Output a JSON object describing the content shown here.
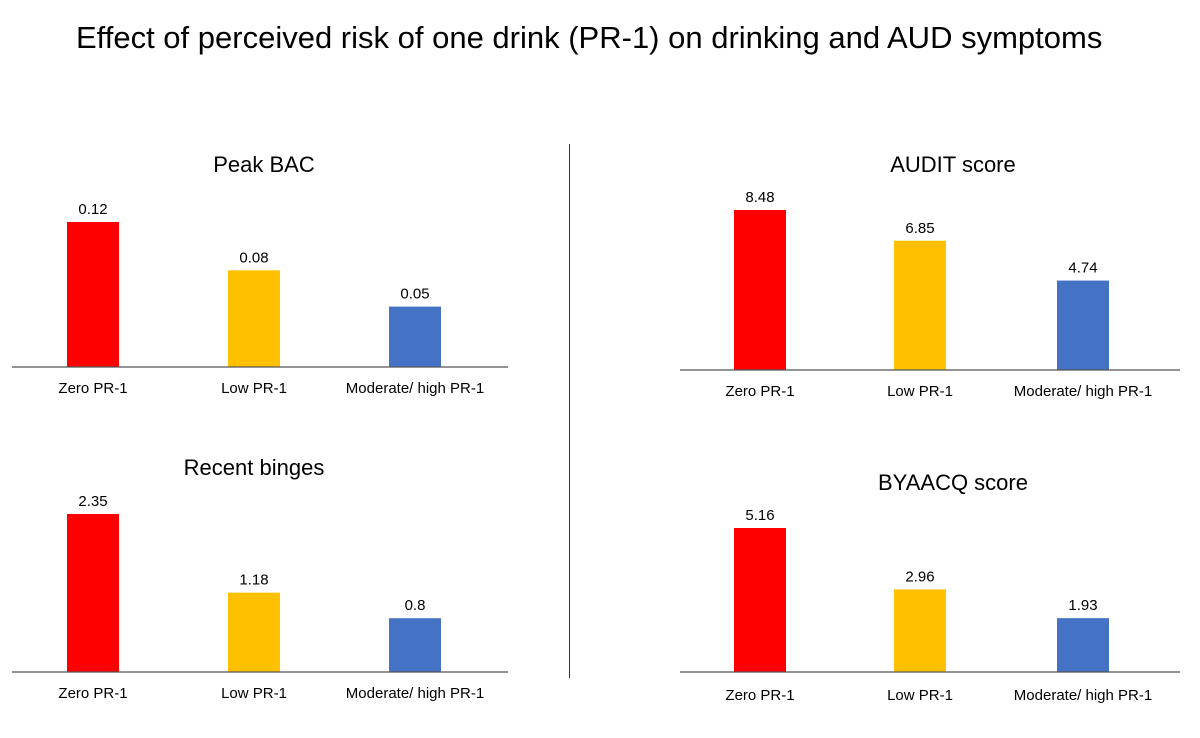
{
  "title": "Effect of perceived risk of one drink (PR-1) on drinking and AUD symptoms",
  "colors": {
    "zero": "#ff0000",
    "low": "#ffc000",
    "moderate": "#4472c4",
    "axis": "#555555"
  },
  "chart_data": [
    {
      "type": "bar",
      "title": "Peak BAC",
      "categories": [
        "Zero PR-1",
        "Low PR-1",
        "Moderate/ high PR-1"
      ],
      "values": [
        0.12,
        0.08,
        0.05
      ],
      "value_labels": [
        "0.12",
        "0.08",
        "0.05"
      ]
    },
    {
      "type": "bar",
      "title": "AUDIT score",
      "categories": [
        "Zero PR-1",
        "Low PR-1",
        "Moderate/ high PR-1"
      ],
      "values": [
        8.48,
        6.85,
        4.74
      ],
      "value_labels": [
        "8.48",
        "6.85",
        "4.74"
      ]
    },
    {
      "type": "bar",
      "title": "Recent binges",
      "categories": [
        "Zero PR-1",
        "Low PR-1",
        "Moderate/ high PR-1"
      ],
      "values": [
        2.35,
        1.18,
        0.8
      ],
      "value_labels": [
        "2.35",
        "1.18",
        "0.8"
      ]
    },
    {
      "type": "bar",
      "title": "BYAACQ score",
      "categories": [
        "Zero PR-1",
        "Low PR-1",
        "Moderate/ high PR-1"
      ],
      "values": [
        5.16,
        2.96,
        1.93
      ],
      "value_labels": [
        "5.16",
        "2.96",
        "1.93"
      ]
    }
  ]
}
